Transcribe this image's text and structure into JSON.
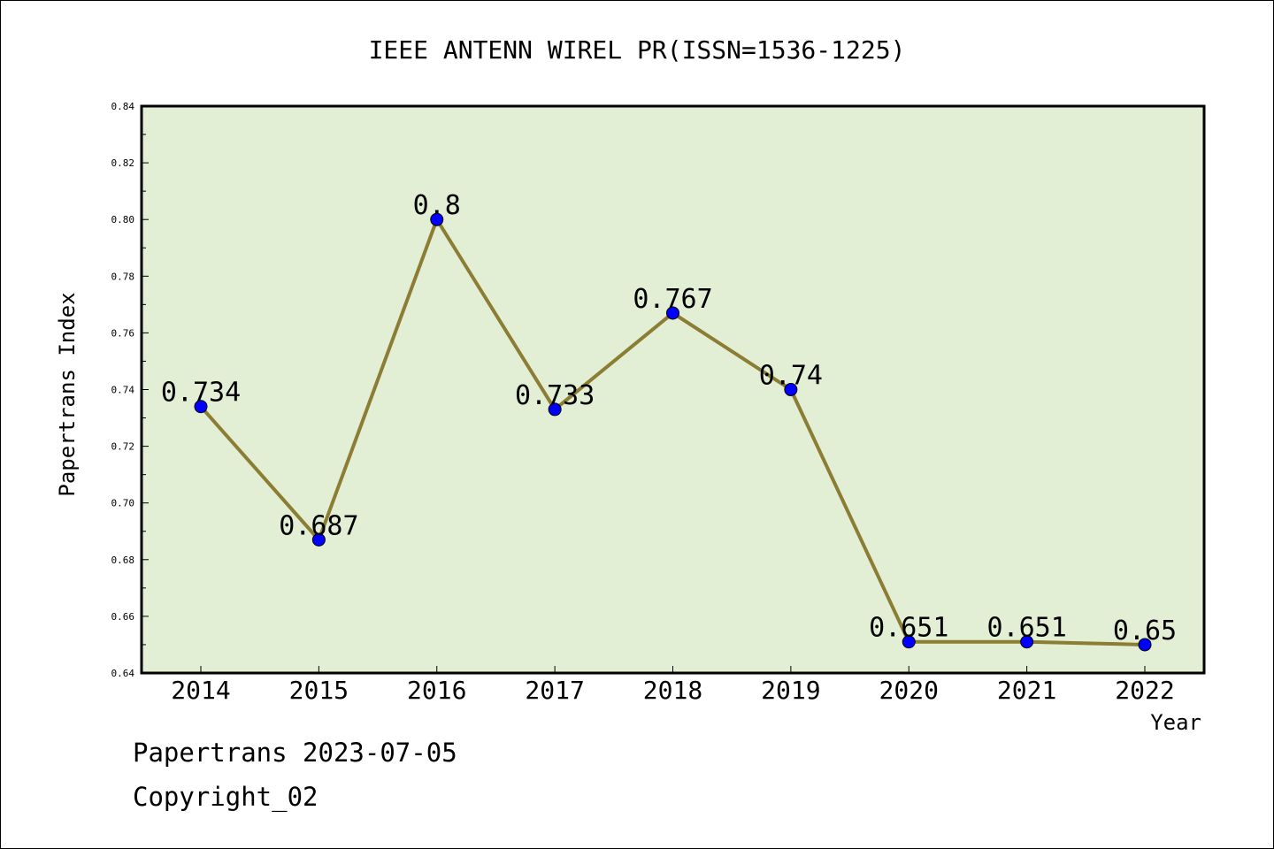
{
  "footer": {
    "line1": "Papertrans 2023-07-05",
    "line2": "Copyright_02"
  },
  "chart_data": {
    "type": "line",
    "title": "IEEE ANTENN WIREL PR(ISSN=1536-1225)",
    "xlabel": "Year",
    "ylabel": "Papertrans Index",
    "categories": [
      "2014",
      "2015",
      "2016",
      "2017",
      "2018",
      "2019",
      "2020",
      "2021",
      "2022"
    ],
    "series": [
      {
        "values": [
          0.734,
          0.687,
          0.8,
          0.733,
          0.767,
          0.74,
          0.651,
          0.651,
          0.65
        ],
        "labels": [
          "0.734",
          "0.687",
          "0.8",
          "0.733",
          "0.767",
          "0.74",
          "0.651",
          "0.651",
          "0.65"
        ]
      }
    ],
    "ylim": [
      0.64,
      0.84
    ],
    "yticks": [
      "0.64",
      "0.66",
      "0.68",
      "0.70",
      "0.72",
      "0.74",
      "0.76",
      "0.78",
      "0.80",
      "0.82",
      "0.84"
    ],
    "grid": false,
    "colors": {
      "plot_background": "#e2efd5",
      "line": "#8b7d33",
      "marker": "#0000ff"
    }
  }
}
